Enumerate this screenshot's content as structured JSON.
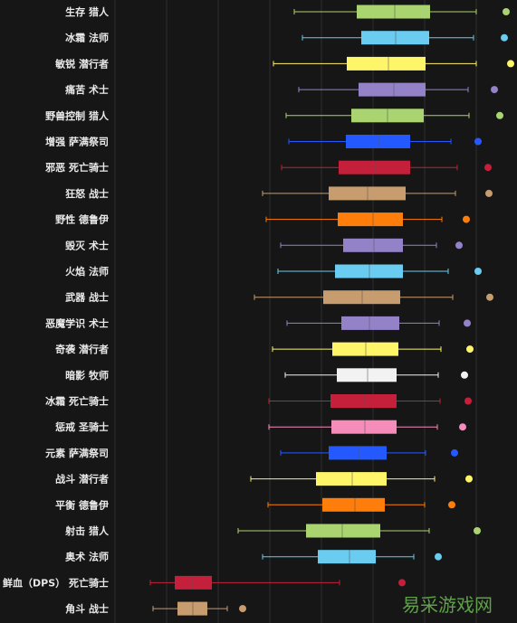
{
  "chart_data": {
    "type": "box",
    "orientation": "horizontal",
    "grid": true,
    "x_axis_labels_visible": false,
    "rows": [
      {
        "label": "生存 猎人",
        "color": "#a9d46f",
        "whisker_low": 325,
        "q1": 394,
        "median": 436,
        "q3": 475,
        "whisker_high": 526,
        "outlier": 559
      },
      {
        "label": "冰霜 法师",
        "color": "#69ccf0",
        "whisker_low": 334,
        "q1": 399,
        "median": 437,
        "q3": 474,
        "whisker_high": 523,
        "outlier": 557
      },
      {
        "label": "敏锐 潜行者",
        "color": "#fff569",
        "whisker_low": 302,
        "q1": 383,
        "median": 429,
        "q3": 470,
        "whisker_high": 526,
        "outlier": 564
      },
      {
        "label": "痛苦 术士",
        "color": "#9482c9",
        "whisker_low": 330,
        "q1": 396,
        "median": 435,
        "q3": 470,
        "whisker_high": 517,
        "outlier": 546
      },
      {
        "label": "野兽控制 猎人",
        "color": "#a9d46f",
        "whisker_low": 316,
        "q1": 388,
        "median": 428,
        "q3": 468,
        "whisker_high": 518,
        "outlier": 552
      },
      {
        "label": "增强 萨满祭司",
        "color": "#2459ff",
        "whisker_low": 319,
        "q1": 382,
        "median": 419,
        "q3": 453,
        "whisker_high": 498,
        "outlier": 528
      },
      {
        "label": "邪恶 死亡骑士",
        "color": "#c41f3b",
        "whisker_low": 311,
        "q1": 374,
        "median": 414,
        "q3": 453,
        "whisker_high": 505,
        "outlier": 539
      },
      {
        "label": "狂怒 战士",
        "color": "#c79c6e",
        "whisker_low": 290,
        "q1": 363,
        "median": 406,
        "q3": 448,
        "whisker_high": 503,
        "outlier": 540
      },
      {
        "label": "野性 德鲁伊",
        "color": "#ff7d0a",
        "whisker_low": 294,
        "q1": 373,
        "median": 412,
        "q3": 445,
        "whisker_high": 488,
        "outlier": 515
      },
      {
        "label": "毁灭 术士",
        "color": "#9482c9",
        "whisker_low": 310,
        "q1": 379,
        "median": 413,
        "q3": 445,
        "whisker_high": 482,
        "outlier": 507
      },
      {
        "label": "火焰 法师",
        "color": "#69ccf0",
        "whisker_low": 307,
        "q1": 370,
        "median": 408,
        "q3": 445,
        "whisker_high": 495,
        "outlier": 528
      },
      {
        "label": "武器 战士",
        "color": "#c79c6e",
        "whisker_low": 281,
        "q1": 357,
        "median": 400,
        "q3": 442,
        "whisker_high": 500,
        "outlier": 541
      },
      {
        "label": "恶魔学识 术士",
        "color": "#9482c9",
        "whisker_low": 317,
        "q1": 377,
        "median": 408,
        "q3": 441,
        "whisker_high": 485,
        "outlier": 516
      },
      {
        "label": "奇袭 潜行者",
        "color": "#fff569",
        "whisker_low": 301,
        "q1": 367,
        "median": 404,
        "q3": 440,
        "whisker_high": 487,
        "outlier": 519
      },
      {
        "label": "暗影 牧师",
        "color": "#f2f2f2",
        "whisker_low": 315,
        "q1": 372,
        "median": 406,
        "q3": 438,
        "whisker_high": 484,
        "outlier": 513
      },
      {
        "label": "冰霜 死亡骑士",
        "color": "#c41f3b",
        "whisker_low": 297,
        "q1": 365,
        "median": 402,
        "q3": 438,
        "whisker_high": 486,
        "outlier": 517
      },
      {
        "label": "惩戒 圣骑士",
        "color": "#f58cba",
        "whisker_low": 297,
        "q1": 366,
        "median": 403,
        "q3": 438,
        "whisker_high": 483,
        "outlier": 511
      },
      {
        "label": "元素 萨满祭司",
        "color": "#2459ff",
        "whisker_low": 310,
        "q1": 363,
        "median": 396,
        "q3": 427,
        "whisker_high": 470,
        "outlier": 502
      },
      {
        "label": "战斗 潜行者",
        "color": "#fff569",
        "whisker_low": 277,
        "q1": 349,
        "median": 389,
        "q3": 427,
        "whisker_high": 480,
        "outlier": 518
      },
      {
        "label": "平衡 德鲁伊",
        "color": "#ff7d0a",
        "whisker_low": 296,
        "q1": 356,
        "median": 392,
        "q3": 425,
        "whisker_high": 469,
        "outlier": 499
      },
      {
        "label": "射击 猎人",
        "color": "#a9d46f",
        "whisker_low": 263,
        "q1": 338,
        "median": 378,
        "q3": 420,
        "whisker_high": 474,
        "outlier": 527
      },
      {
        "label": "奥术 法师",
        "color": "#69ccf0",
        "whisker_low": 290,
        "q1": 351,
        "median": 386,
        "q3": 415,
        "whisker_high": 457,
        "outlier": 484
      },
      {
        "label": "鲜血（DPS） 死亡骑士",
        "color": "#c41f3b",
        "whisker_low": 166,
        "q1": 193,
        "median": 213,
        "q3": 234,
        "whisker_high": 375,
        "outlier": 444
      },
      {
        "label": "角斗 战士",
        "color": "#c79c6e",
        "whisker_low": 169,
        "q1": 196,
        "median": 213,
        "q3": 229,
        "whisker_high": 251,
        "outlier": 268
      }
    ]
  },
  "watermark": "易采游戏网"
}
